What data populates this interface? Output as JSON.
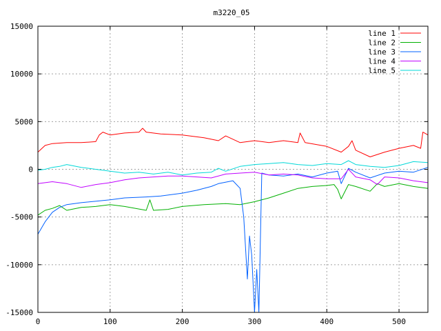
{
  "chart_data": {
    "type": "line",
    "title": "m3220_05",
    "xlim": [
      0,
      540
    ],
    "ylim": [
      -15000,
      15000
    ],
    "x_ticks": [
      0,
      100,
      200,
      300,
      400,
      500
    ],
    "y_ticks": [
      -15000,
      -10000,
      -5000,
      0,
      5000,
      10000,
      15000
    ],
    "grid": true,
    "legend_position": "top-right",
    "series": [
      {
        "name": "line 1",
        "color": "#ff0000",
        "x": [
          0,
          10,
          20,
          40,
          60,
          80,
          85,
          90,
          100,
          120,
          140,
          145,
          150,
          170,
          200,
          230,
          250,
          260,
          280,
          300,
          320,
          340,
          360,
          363,
          370,
          400,
          420,
          430,
          435,
          440,
          460,
          480,
          500,
          520,
          530,
          533,
          540
        ],
        "y": [
          1800,
          2500,
          2700,
          2800,
          2800,
          2900,
          3600,
          3900,
          3600,
          3800,
          3900,
          4300,
          3900,
          3700,
          3600,
          3300,
          3000,
          3500,
          2800,
          3000,
          2800,
          3000,
          2800,
          3800,
          2800,
          2400,
          1800,
          2400,
          3000,
          2000,
          1300,
          1800,
          2200,
          2500,
          2200,
          3900,
          3600
        ]
      },
      {
        "name": "line 2",
        "color": "#00b000",
        "x": [
          0,
          10,
          20,
          30,
          40,
          60,
          80,
          100,
          120,
          150,
          155,
          160,
          180,
          200,
          230,
          260,
          280,
          300,
          320,
          340,
          360,
          380,
          400,
          410,
          415,
          420,
          430,
          440,
          460,
          470,
          480,
          500,
          520,
          540
        ],
        "y": [
          -4800,
          -4300,
          -4100,
          -3800,
          -4300,
          -4000,
          -3900,
          -3700,
          -3900,
          -4300,
          -3200,
          -4300,
          -4200,
          -3900,
          -3700,
          -3600,
          -3700,
          -3400,
          -3000,
          -2500,
          -2000,
          -1800,
          -1700,
          -1600,
          -2100,
          -3100,
          -1600,
          -1800,
          -2300,
          -1500,
          -1800,
          -1500,
          -1800,
          -2000
        ]
      },
      {
        "name": "line 3",
        "color": "#0060ff",
        "x": [
          0,
          10,
          20,
          30,
          40,
          60,
          100,
          120,
          150,
          170,
          200,
          220,
          240,
          250,
          270,
          280,
          285,
          290,
          293,
          296,
          300,
          303,
          306,
          310,
          320,
          340,
          360,
          380,
          400,
          415,
          420,
          430,
          440,
          460,
          480,
          500,
          520,
          540
        ],
        "y": [
          -6800,
          -5500,
          -4500,
          -4000,
          -3700,
          -3500,
          -3200,
          -3000,
          -2900,
          -2800,
          -2500,
          -2200,
          -1800,
          -1500,
          -1200,
          -2000,
          -5000,
          -11500,
          -7000,
          -9000,
          -15000,
          -10500,
          -15000,
          -400,
          -600,
          -700,
          -500,
          -800,
          -400,
          -200,
          -1500,
          100,
          -300,
          -900,
          -400,
          -200,
          -300,
          200
        ]
      },
      {
        "name": "line 4",
        "color": "#c000ff",
        "x": [
          0,
          20,
          40,
          60,
          80,
          100,
          120,
          140,
          160,
          180,
          200,
          220,
          240,
          260,
          280,
          300,
          320,
          340,
          360,
          380,
          400,
          420,
          430,
          440,
          460,
          470,
          480,
          500,
          520,
          540
        ],
        "y": [
          -1500,
          -1300,
          -1500,
          -1900,
          -1600,
          -1400,
          -1100,
          -900,
          -800,
          -700,
          -700,
          -800,
          -900,
          -500,
          -400,
          -300,
          -600,
          -500,
          -600,
          -900,
          -1000,
          -1000,
          0,
          -800,
          -1100,
          -1600,
          -800,
          -900,
          -1200,
          -1400
        ]
      },
      {
        "name": "line 5",
        "color": "#00d8d8",
        "x": [
          0,
          10,
          20,
          30,
          40,
          60,
          80,
          100,
          120,
          140,
          160,
          180,
          200,
          220,
          240,
          250,
          260,
          280,
          300,
          320,
          340,
          360,
          380,
          400,
          420,
          430,
          440,
          460,
          480,
          500,
          520,
          540
        ],
        "y": [
          -100,
          0,
          200,
          300,
          500,
          200,
          0,
          -200,
          -400,
          -300,
          -500,
          -300,
          -600,
          -400,
          -300,
          100,
          -200,
          300,
          500,
          600,
          700,
          500,
          400,
          600,
          500,
          900,
          500,
          300,
          200,
          400,
          800,
          700
        ]
      }
    ]
  }
}
